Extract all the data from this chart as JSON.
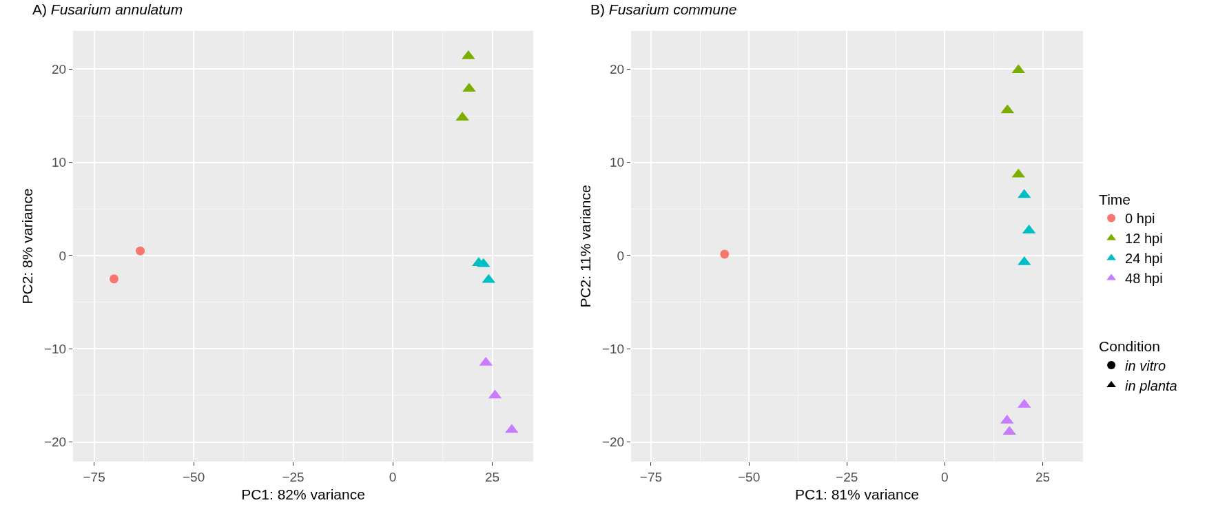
{
  "chart_data": [
    {
      "type": "scatter",
      "title": "A) Fusarium annulatum",
      "xlabel": "PC1: 82% variance",
      "ylabel": "PC2: 8% variance",
      "grid": true,
      "legend": "right",
      "xlim": [
        -80.3,
        35.3
      ],
      "xticks": [
        -75,
        -50,
        -25,
        0,
        25
      ],
      "ylim": [
        -22.1,
        24.1
      ],
      "yticks": [
        -20,
        -10,
        0,
        10,
        20
      ],
      "series": [
        {
          "name": "0 hpi",
          "color": "#f8766d",
          "marker": "circle",
          "x": [
            -70.0,
            -63.4
          ],
          "values": [
            -2.5,
            0.5
          ]
        },
        {
          "name": "12 hpi",
          "color": "#7cae00",
          "marker": "triangle",
          "x": [
            19.0,
            19.2,
            17.5
          ],
          "values": [
            21.4,
            17.9,
            14.8
          ]
        },
        {
          "name": "24 hpi",
          "color": "#00bfc4",
          "marker": "triangle",
          "x": [
            21.6,
            22.8,
            24.1
          ],
          "values": [
            -0.8,
            -0.9,
            -2.6
          ]
        },
        {
          "name": "48 hpi",
          "color": "#c77cff",
          "marker": "triangle",
          "x": [
            23.4,
            25.7,
            29.9
          ],
          "values": [
            -11.5,
            -15.0,
            -18.7
          ]
        }
      ]
    },
    {
      "type": "scatter",
      "title": "B) Fusarium commune",
      "xlabel": "PC1: 81% variance",
      "ylabel": "PC2: 11% variance",
      "grid": true,
      "legend": "right",
      "legend_title": "Time",
      "xlim": [
        -80.1,
        35.3
      ],
      "xticks": [
        -75,
        -50,
        -25,
        0,
        25
      ],
      "ylim": [
        -22.1,
        24.1
      ],
      "yticks": [
        -20,
        -10,
        0,
        10,
        20
      ],
      "annotations": [
        "Condition"
      ],
      "series": [
        {
          "name": "0 hpi",
          "color": "#f8766d",
          "marker": "circle",
          "x": [
            -56.2
          ],
          "values": [
            0.15
          ]
        },
        {
          "name": "12 hpi",
          "color": "#7cae00",
          "marker": "triangle",
          "x": [
            18.8,
            16.0,
            18.8
          ],
          "values": [
            19.9,
            15.6,
            8.7
          ]
        },
        {
          "name": "24 hpi",
          "color": "#00bfc4",
          "marker": "triangle",
          "x": [
            20.3,
            21.5,
            20.3
          ],
          "values": [
            6.5,
            2.7,
            -0.7
          ]
        },
        {
          "name": "48 hpi",
          "color": "#c77cff",
          "marker": "triangle",
          "x": [
            20.3,
            15.9,
            16.5
          ],
          "values": [
            -16.0,
            -17.7,
            -18.9
          ]
        },
        {
          "name": "in vitro",
          "color": "#000000",
          "marker": "circle"
        },
        {
          "name": "in planta",
          "color": "#000000",
          "marker": "triangle"
        }
      ]
    }
  ]
}
